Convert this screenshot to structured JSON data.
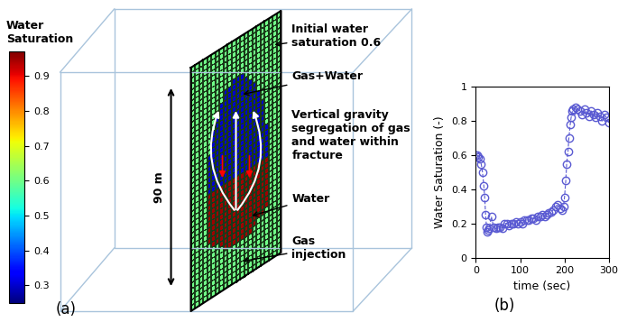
{
  "diagram": {
    "colorbar": {
      "label": "Water Saturation",
      "range": [
        0.25,
        0.97
      ],
      "ticks": [
        0.3,
        0.4,
        0.5,
        0.6,
        0.7,
        0.8,
        0.9
      ]
    },
    "initial_saturation": 0.6,
    "zones": [
      {
        "label": "Gas+Water",
        "saturation": 0.3
      },
      {
        "label": "Water",
        "saturation": 0.95
      }
    ],
    "labels": {
      "initial": "Initial water saturation 0.6",
      "segregation": "Vertical gravity segregation of gas and water within fracture",
      "injection": "Gas injection",
      "height": "90 m"
    },
    "annotation": "(a)"
  },
  "chart_data": {
    "type": "line",
    "annotation": "(b)",
    "x_label": "time (sec)",
    "y_label": "Water Saturation (-)",
    "x": [
      0,
      3,
      6,
      9,
      12,
      15,
      18,
      20,
      22,
      24,
      26,
      28,
      30,
      35,
      40,
      45,
      50,
      55,
      60,
      65,
      70,
      75,
      80,
      85,
      90,
      95,
      100,
      105,
      110,
      115,
      120,
      125,
      130,
      135,
      140,
      145,
      150,
      155,
      160,
      165,
      170,
      175,
      180,
      185,
      190,
      195,
      198,
      200,
      203,
      205,
      208,
      210,
      213,
      215,
      218,
      220,
      225,
      230,
      235,
      240,
      245,
      250,
      255,
      260,
      265,
      270,
      275,
      280,
      285,
      290,
      295,
      300
    ],
    "values": [
      0.6,
      0.6,
      0.59,
      0.58,
      0.55,
      0.5,
      0.42,
      0.35,
      0.25,
      0.18,
      0.15,
      0.16,
      0.17,
      0.24,
      0.18,
      0.17,
      0.18,
      0.18,
      0.17,
      0.2,
      0.2,
      0.19,
      0.2,
      0.2,
      0.21,
      0.2,
      0.21,
      0.2,
      0.22,
      0.22,
      0.22,
      0.23,
      0.23,
      0.22,
      0.24,
      0.24,
      0.25,
      0.24,
      0.25,
      0.26,
      0.27,
      0.28,
      0.3,
      0.31,
      0.29,
      0.28,
      0.3,
      0.35,
      0.45,
      0.55,
      0.62,
      0.7,
      0.78,
      0.82,
      0.86,
      0.87,
      0.88,
      0.87,
      0.86,
      0.84,
      0.87,
      0.85,
      0.83,
      0.86,
      0.84,
      0.82,
      0.85,
      0.83,
      0.8,
      0.84,
      0.82,
      0.79
    ],
    "color": "#5a5ad2",
    "marker": "o",
    "line_style": "dashed",
    "xlim": [
      0,
      300
    ],
    "xticks": [
      0,
      100,
      200,
      300
    ],
    "ylim": [
      0,
      1
    ],
    "yticks": [
      0,
      0.2,
      0.4,
      0.6,
      0.8,
      1
    ]
  }
}
